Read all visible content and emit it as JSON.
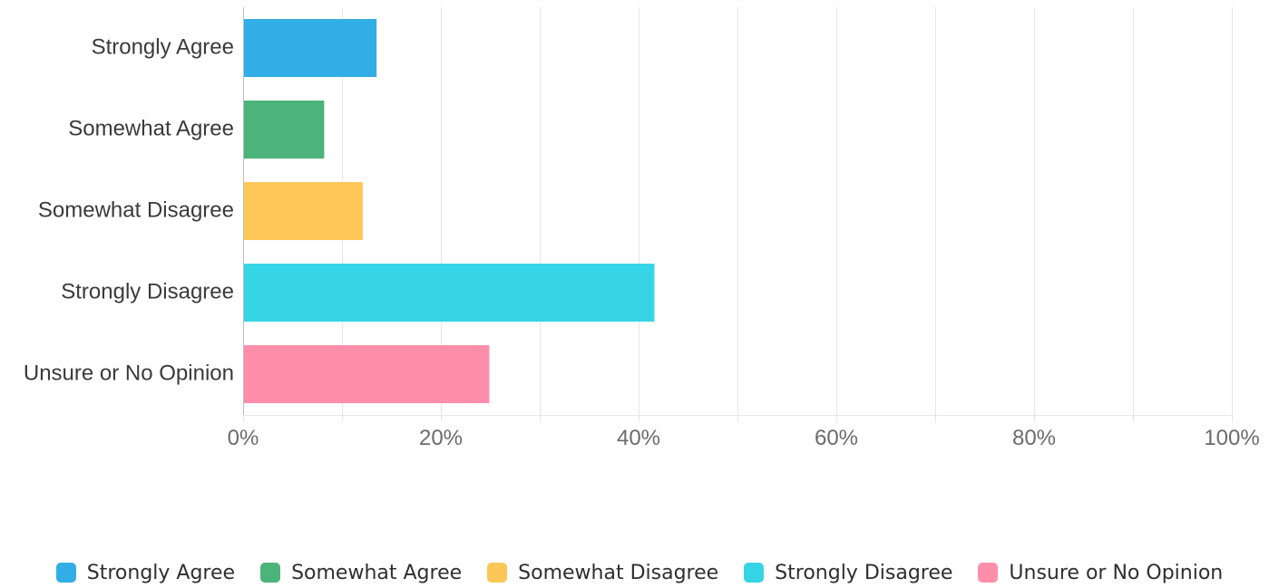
{
  "chart_data": {
    "type": "bar",
    "orientation": "horizontal",
    "categories": [
      "Strongly Agree",
      "Somewhat Agree",
      "Somewhat Disagree",
      "Strongly Disagree",
      "Unsure or No Opinion"
    ],
    "values": [
      13.5,
      8.2,
      12.1,
      41.6,
      24.9
    ],
    "colors": [
      "#33ADE6",
      "#4CB37A",
      "#FCC756",
      "#36D5E6",
      "#FF8EAB"
    ],
    "xlim": [
      0,
      100
    ],
    "xticks": [
      0,
      20,
      40,
      60,
      80,
      100
    ],
    "xtick_labels": [
      "0%",
      "20%",
      "40%",
      "60%",
      "80%",
      "100%"
    ],
    "grid": true,
    "legend_position": "bottom",
    "title": "",
    "xlabel": "",
    "ylabel": ""
  },
  "legend": {
    "items": [
      {
        "label": "Strongly Agree",
        "color": "#33ADE6"
      },
      {
        "label": "Somewhat Agree",
        "color": "#4CB37A"
      },
      {
        "label": "Somewhat Disagree",
        "color": "#FCC756"
      },
      {
        "label": "Strongly Disagree",
        "color": "#36D5E6"
      },
      {
        "label": "Unsure or No Opinion",
        "color": "#FF8EAB"
      }
    ]
  }
}
